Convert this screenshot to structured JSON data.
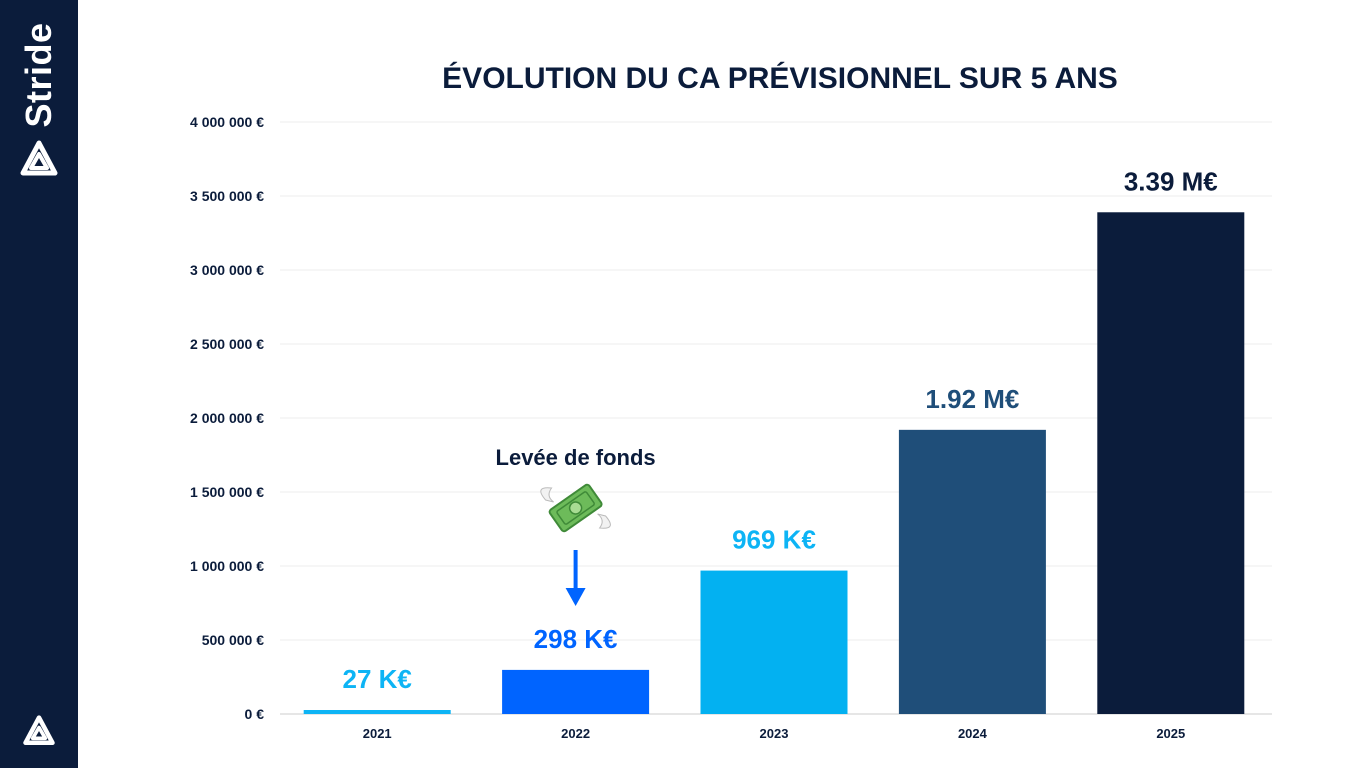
{
  "brand": {
    "name": "Stride"
  },
  "colors": {
    "sidebar": "#0b1c3b",
    "text": "#0b1c3b",
    "arrow": "#0064ff",
    "grid": "#eeeeee",
    "axis": "#cccccc"
  },
  "chart_data": {
    "type": "bar",
    "title": "ÉVOLUTION DU CA PRÉVISIONNEL SUR 5 ANS",
    "xlabel": "",
    "ylabel": "",
    "ylim": [
      0,
      4000000
    ],
    "yticks": [
      0,
      500000,
      1000000,
      1500000,
      2000000,
      2500000,
      3000000,
      3500000,
      4000000
    ],
    "ytick_labels": [
      "0 €",
      "500 000 €",
      "1 000 000 €",
      "1 500 000 €",
      "2 000 000 €",
      "2 500 000 €",
      "3 000 000 €",
      "3 500 000 €",
      "4 000 000 €"
    ],
    "grid": true,
    "categories": [
      "2021",
      "2022",
      "2023",
      "2024",
      "2025"
    ],
    "values": [
      27000,
      298000,
      969000,
      1920000,
      3390000
    ],
    "data_labels": [
      "27 K€",
      "298 K€",
      "969 K€",
      "1.92 M€",
      "3.39 M€"
    ],
    "bar_colors": [
      "#0db4f5",
      "#0064ff",
      "#03b1f1",
      "#1f4e79",
      "#0b1c3b"
    ],
    "label_colors": [
      "#0db4f5",
      "#0064ff",
      "#0db4f5",
      "#1f4e79",
      "#0b1c3b"
    ],
    "annotation": {
      "text": "Levée de fonds",
      "category": "2022",
      "icon": "money-with-wings-icon",
      "arrow": "down-arrow-icon"
    }
  }
}
